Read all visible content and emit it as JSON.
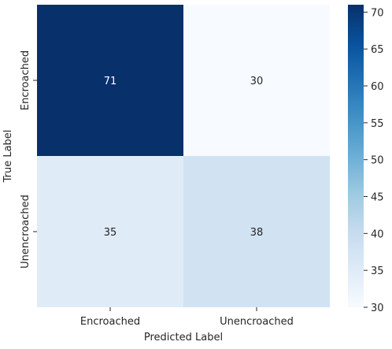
{
  "chart_data": {
    "type": "heatmap",
    "title": "",
    "xlabel": "Predicted Label",
    "ylabel": "True Label",
    "x_categories": [
      "Encroached",
      "Unencroached"
    ],
    "y_categories": [
      "Encroached",
      "Unencroached"
    ],
    "values": [
      [
        71,
        30
      ],
      [
        35,
        38
      ]
    ],
    "colormap": "Blues",
    "colorbar": {
      "min": 30,
      "max": 71,
      "ticks": [
        30,
        35,
        40,
        45,
        50,
        55,
        60,
        65,
        70
      ]
    },
    "annotations": true,
    "grid": false,
    "legend": "colorbar-right"
  }
}
